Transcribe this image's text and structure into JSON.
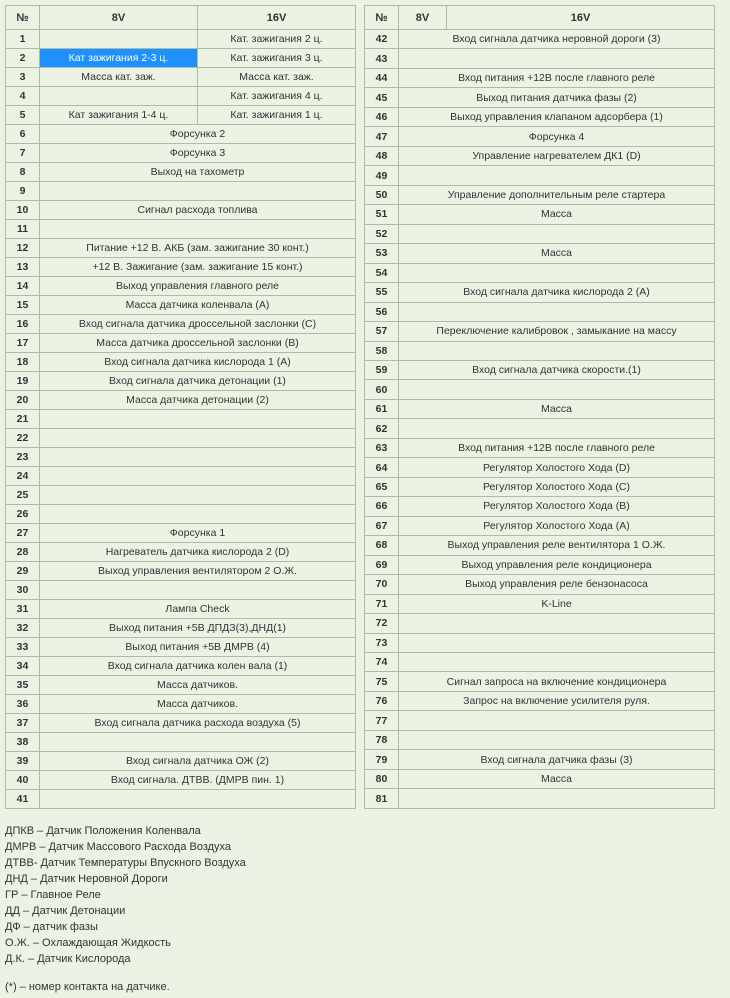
{
  "headers": {
    "n": "№",
    "col8v": "8V",
    "col16v": "16V"
  },
  "highlight_cell": {
    "row": 2,
    "col": "8v"
  },
  "left_rows": [
    {
      "n": 1,
      "v8": "",
      "v16": "Кат. зажигания  2 ц."
    },
    {
      "n": 2,
      "v8": "Кат зажигания 2-3 ц.",
      "v16": "Кат. зажигания  3 ц."
    },
    {
      "n": 3,
      "v8": "Масса кат. заж.",
      "v16": "Масса кат. заж."
    },
    {
      "n": 4,
      "v8": "",
      "v16": "Кат. зажигания  4 ц."
    },
    {
      "n": 5,
      "v8": "Кат зажигания 1-4 ц.",
      "v16": "Кат. зажигания  1 ц."
    },
    {
      "n": 6,
      "span": "Форсунка 2"
    },
    {
      "n": 7,
      "span": "Форсунка 3"
    },
    {
      "n": 8,
      "span": "Выход на тахометр"
    },
    {
      "n": 9,
      "span": ""
    },
    {
      "n": 10,
      "span": "Сигнал расхода топлива"
    },
    {
      "n": 11,
      "span": ""
    },
    {
      "n": 12,
      "span": "Питание +12 В. АКБ (зам. зажигание 30 конт.)"
    },
    {
      "n": 13,
      "span": "+12 В. Зажигание (зам. зажигание 15 конт.)"
    },
    {
      "n": 14,
      "span": "Выход управления главного реле"
    },
    {
      "n": 15,
      "span": "Масса датчика коленвала (A)"
    },
    {
      "n": 16,
      "span": "Вход сигнала датчика дроссельной заслонки (C)"
    },
    {
      "n": 17,
      "span": "Масса датчика дроссельной заслонки (B)"
    },
    {
      "n": 18,
      "span": "Вход сигнала датчика кислорода 1 (A)"
    },
    {
      "n": 19,
      "span": "Вход сигнала датчика детонации (1)"
    },
    {
      "n": 20,
      "span": "Масса датчика детонации (2)"
    },
    {
      "n": 21,
      "span": ""
    },
    {
      "n": 22,
      "span": ""
    },
    {
      "n": 23,
      "span": ""
    },
    {
      "n": 24,
      "span": ""
    },
    {
      "n": 25,
      "span": ""
    },
    {
      "n": 26,
      "span": ""
    },
    {
      "n": 27,
      "span": "Форсунка 1"
    },
    {
      "n": 28,
      "span": "Нагреватель датчика кислорода 2 (D)"
    },
    {
      "n": 29,
      "span": "Выход управления  вентилятором 2  О.Ж."
    },
    {
      "n": 30,
      "span": ""
    },
    {
      "n": 31,
      "span": "Лампа Check"
    },
    {
      "n": 32,
      "span": "Выход питания +5В ДПДЗ(3),ДНД(1)"
    },
    {
      "n": 33,
      "span": "Выход питания +5В ДМРВ (4)"
    },
    {
      "n": 34,
      "span": "Вход сигнала датчика колен вала (1)"
    },
    {
      "n": 35,
      "span": "Масса датчиков."
    },
    {
      "n": 36,
      "span": "Масса датчиков."
    },
    {
      "n": 37,
      "span": "Вход сигнала датчика расхода воздуха (5)"
    },
    {
      "n": 38,
      "span": ""
    },
    {
      "n": 39,
      "span": "Вход сигнала датчика ОЖ (2)"
    },
    {
      "n": 40,
      "span": "Вход сигнала. ДТВВ. (ДМРВ пин. 1)"
    },
    {
      "n": 41,
      "span": ""
    }
  ],
  "right_rows": [
    {
      "n": 42,
      "span": "Вход сигнала датчика неровной дороги (3)"
    },
    {
      "n": 43,
      "span": ""
    },
    {
      "n": 44,
      "span": "Вход питания +12В после главного реле"
    },
    {
      "n": 45,
      "span": "Выход питания датчика фазы (2)"
    },
    {
      "n": 46,
      "span": "Выход управления клапаном адсорбера (1)"
    },
    {
      "n": 47,
      "span": "Форсунка 4"
    },
    {
      "n": 48,
      "span": "Управление нагревателем ДК1 (D)"
    },
    {
      "n": 49,
      "span": ""
    },
    {
      "n": 50,
      "span": "Управление дополнительным реле стартера"
    },
    {
      "n": 51,
      "span": "Масса"
    },
    {
      "n": 52,
      "span": ""
    },
    {
      "n": 53,
      "span": "Масса"
    },
    {
      "n": 54,
      "span": ""
    },
    {
      "n": 55,
      "span": "Вход сигнала датчика кислорода 2 (A)"
    },
    {
      "n": 56,
      "span": ""
    },
    {
      "n": 57,
      "span": "Переключение калибровок , замыкание на массу"
    },
    {
      "n": 58,
      "span": ""
    },
    {
      "n": 59,
      "span": "Вход сигнала датчика скорости.(1)"
    },
    {
      "n": 60,
      "span": ""
    },
    {
      "n": 61,
      "span": "Масса"
    },
    {
      "n": 62,
      "span": ""
    },
    {
      "n": 63,
      "span": "Вход питания +12В после главного реле"
    },
    {
      "n": 64,
      "span": "Регулятор Холостого Хода (D)"
    },
    {
      "n": 65,
      "span": "Регулятор Холостого Хода (C)"
    },
    {
      "n": 66,
      "span": "Регулятор Холостого Хода (B)"
    },
    {
      "n": 67,
      "span": "Регулятор Холостого Хода (A)"
    },
    {
      "n": 68,
      "span": "Выход управления реле вентилятора 1  О.Ж."
    },
    {
      "n": 69,
      "span": "Выход управления реле кондиционера"
    },
    {
      "n": 70,
      "span": "Выход управления реле бензонасоса"
    },
    {
      "n": 71,
      "span": "K-Line"
    },
    {
      "n": 72,
      "span": ""
    },
    {
      "n": 73,
      "span": ""
    },
    {
      "n": 74,
      "span": ""
    },
    {
      "n": 75,
      "span": "Сигнал запроса на включение кондиционера"
    },
    {
      "n": 76,
      "span": "Запрос на включение усилителя руля."
    },
    {
      "n": 77,
      "span": ""
    },
    {
      "n": 78,
      "span": ""
    },
    {
      "n": 79,
      "span": "Вход сигнала датчика фазы (3)"
    },
    {
      "n": 80,
      "span": "Масса"
    },
    {
      "n": 81,
      "span": ""
    }
  ],
  "legend": [
    "ДПКВ – Датчик Положения Коленвала",
    "ДМРВ – Датчик Массового Расхода Воздуха",
    "ДТВВ- Датчик Температуры Впускного Воздуха",
    "ДНД – Датчик Неровной Дороги",
    "ГР – Главное Реле",
    "ДД – Датчик Детонации",
    "ДФ – датчик фазы",
    "О.Ж. – Охлаждающая Жидкость",
    "Д.К. – Датчик Кислорода"
  ],
  "footnote": "(*) – номер контакта на датчике.",
  "layout": {
    "left_col_widths": {
      "n": 34,
      "v8": 158,
      "v16": 158
    },
    "right_col_widths": {
      "n": 34,
      "v8": 48,
      "v16": 268
    }
  },
  "colors": {
    "page_bg": "#edf3e4",
    "border": "#a9bfa0",
    "highlight_bg": "#1e90ff",
    "highlight_fg": "#ffffff",
    "text": "#333333"
  }
}
